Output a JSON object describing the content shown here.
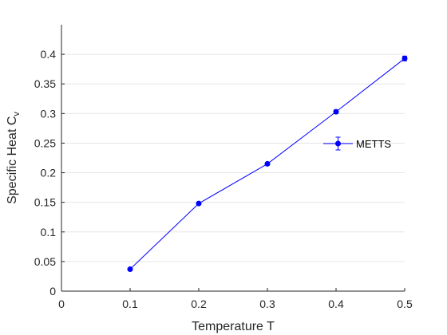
{
  "chart_data": {
    "type": "line",
    "xlabel": "Temperature T",
    "ylabel": "Specific Heat C",
    "ylabel_subscript": "v",
    "xlim": [
      0,
      0.5
    ],
    "ylim": [
      0,
      0.45
    ],
    "xticks": [
      0,
      0.1,
      0.2,
      0.3,
      0.4,
      0.5
    ],
    "xtick_labels": [
      "0",
      "0.1",
      "0.2",
      "0.3",
      "0.4",
      "0.5"
    ],
    "yticks": [
      0,
      0.05,
      0.1,
      0.15,
      0.2,
      0.25,
      0.3,
      0.35,
      0.4
    ],
    "ytick_labels": [
      "0",
      "0.05",
      "0.1",
      "0.15",
      "0.2",
      "0.25",
      "0.3",
      "0.35",
      "0.4"
    ],
    "grid": "horizontal",
    "legend_position": "right",
    "series": [
      {
        "name": "METTS",
        "color": "#0000ff",
        "marker": "circle",
        "error_bars": true,
        "x": [
          0.1,
          0.2,
          0.3,
          0.4,
          0.5
        ],
        "y": [
          0.037,
          0.148,
          0.215,
          0.303,
          0.393
        ],
        "error": [
          0.002,
          0.002,
          0.002,
          0.003,
          0.004
        ]
      }
    ]
  }
}
